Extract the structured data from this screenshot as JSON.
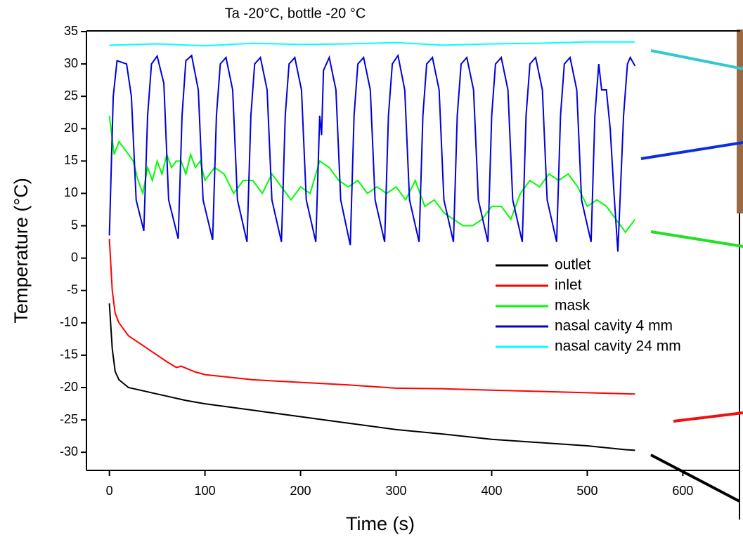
{
  "chart_data": {
    "type": "line",
    "title": "Ta -20°C, bottle -20 °C",
    "x_label": "Time (s)",
    "y_label": "Temperature (°C)",
    "xlim": [
      -24,
      660
    ],
    "ylim": [
      -32.8,
      35
    ],
    "xticks": [
      0,
      100,
      200,
      300,
      400,
      500,
      600
    ],
    "yticks": [
      35,
      30,
      25,
      20,
      15,
      10,
      5,
      0,
      -5,
      -10,
      -15,
      -20,
      -25,
      -30
    ],
    "legend": "right",
    "grid": false,
    "series": [
      {
        "name": "outlet",
        "color": "#000000",
        "x": [
          0,
          3,
          6,
          10,
          20,
          50,
          80,
          100,
          150,
          200,
          250,
          300,
          350,
          400,
          450,
          500,
          540,
          550
        ],
        "values": [
          -7,
          -14,
          -17.5,
          -18.8,
          -20,
          -21,
          -22,
          -22.5,
          -23.5,
          -24.5,
          -25.5,
          -26.5,
          -27.2,
          -28,
          -28.5,
          -29,
          -29.6,
          -29.7
        ]
      },
      {
        "name": "inlet",
        "color": "#ff0000",
        "x": [
          0,
          3,
          6,
          10,
          20,
          40,
          60,
          70,
          75,
          90,
          100,
          150,
          200,
          250,
          300,
          350,
          400,
          450,
          500,
          550
        ],
        "values": [
          3,
          -5,
          -8.5,
          -10,
          -12,
          -14,
          -16,
          -16.9,
          -16.7,
          -17.6,
          -18,
          -18.8,
          -19.2,
          -19.6,
          -20.1,
          -20.2,
          -20.4,
          -20.6,
          -20.8,
          -21
        ]
      },
      {
        "name": "mask",
        "color": "#00ff00",
        "x": [
          0,
          5,
          10,
          15,
          20,
          25,
          30,
          35,
          40,
          45,
          50,
          55,
          60,
          65,
          70,
          75,
          80,
          85,
          90,
          95,
          100,
          110,
          120,
          130,
          140,
          150,
          160,
          170,
          180,
          190,
          200,
          210,
          220,
          230,
          240,
          250,
          260,
          270,
          280,
          290,
          300,
          310,
          320,
          330,
          340,
          350,
          360,
          370,
          380,
          390,
          400,
          410,
          420,
          430,
          440,
          450,
          460,
          470,
          480,
          490,
          500,
          510,
          520,
          530,
          540,
          550
        ],
        "values": [
          22,
          16,
          18,
          17,
          16,
          15,
          12,
          10,
          14,
          12,
          15,
          13,
          16,
          14,
          15,
          15,
          13,
          16,
          14,
          15,
          12,
          14,
          13,
          10,
          12,
          12,
          10,
          13,
          11,
          9,
          11,
          10,
          15,
          14,
          12,
          11,
          12,
          10,
          11,
          10,
          11,
          9,
          12,
          8,
          9,
          7,
          6,
          5,
          5,
          6,
          8,
          8,
          6,
          10,
          12,
          11,
          13,
          12,
          13,
          11,
          8,
          9,
          8,
          6,
          4,
          6
        ]
      },
      {
        "name": "nasal cavity 4 mm",
        "color": "#0000dd",
        "x": [
          0,
          4,
          8,
          18,
          23,
          28,
          36,
          40,
          44,
          50,
          57,
          62,
          72,
          76,
          80,
          86,
          93,
          98,
          108,
          112,
          116,
          122,
          129,
          134,
          144,
          148,
          152,
          158,
          165,
          170,
          180,
          184,
          188,
          194,
          201,
          206,
          216,
          220,
          222,
          224,
          230,
          237,
          242,
          252,
          256,
          260,
          266,
          273,
          278,
          288,
          292,
          296,
          302,
          309,
          314,
          324,
          328,
          332,
          338,
          345,
          350,
          360,
          364,
          368,
          374,
          381,
          386,
          396,
          400,
          404,
          410,
          417,
          422,
          432,
          436,
          440,
          446,
          453,
          458,
          468,
          472,
          476,
          482,
          489,
          494,
          504,
          508,
          512,
          515,
          520,
          524,
          528,
          532,
          538,
          542,
          545,
          550
        ],
        "values": [
          3.5,
          25,
          30.5,
          30,
          25,
          9,
          4.2,
          22,
          30,
          31.2,
          27,
          9,
          3,
          22,
          30.5,
          31.3,
          26,
          9,
          2.8,
          22,
          30,
          31,
          26,
          9,
          2.5,
          22,
          30,
          31,
          26,
          9,
          2.5,
          22,
          30,
          31,
          26,
          9,
          2.5,
          22,
          19,
          29,
          31,
          26,
          9,
          2,
          22,
          30,
          31,
          26,
          9,
          2.5,
          22,
          30,
          31.3,
          26,
          9,
          2.5,
          22,
          30,
          31,
          26,
          9,
          2.5,
          22,
          30,
          31,
          26,
          9,
          2.5,
          22,
          30,
          31,
          26,
          9,
          2.5,
          22,
          30,
          31,
          26,
          9,
          2.5,
          22,
          30,
          31,
          26,
          9,
          2.5,
          22,
          30,
          26,
          26,
          20,
          10,
          1,
          22,
          30,
          31,
          29.7
        ]
      },
      {
        "name": "nasal cavity 24 mm",
        "color": "#00ffff",
        "x": [
          0,
          50,
          100,
          150,
          200,
          250,
          300,
          350,
          400,
          450,
          500,
          550
        ],
        "values": [
          32.9,
          33.1,
          32.8,
          33.2,
          33,
          33.1,
          33.3,
          32.9,
          33.1,
          33.2,
          33.4,
          33.4
        ]
      }
    ]
  }
}
